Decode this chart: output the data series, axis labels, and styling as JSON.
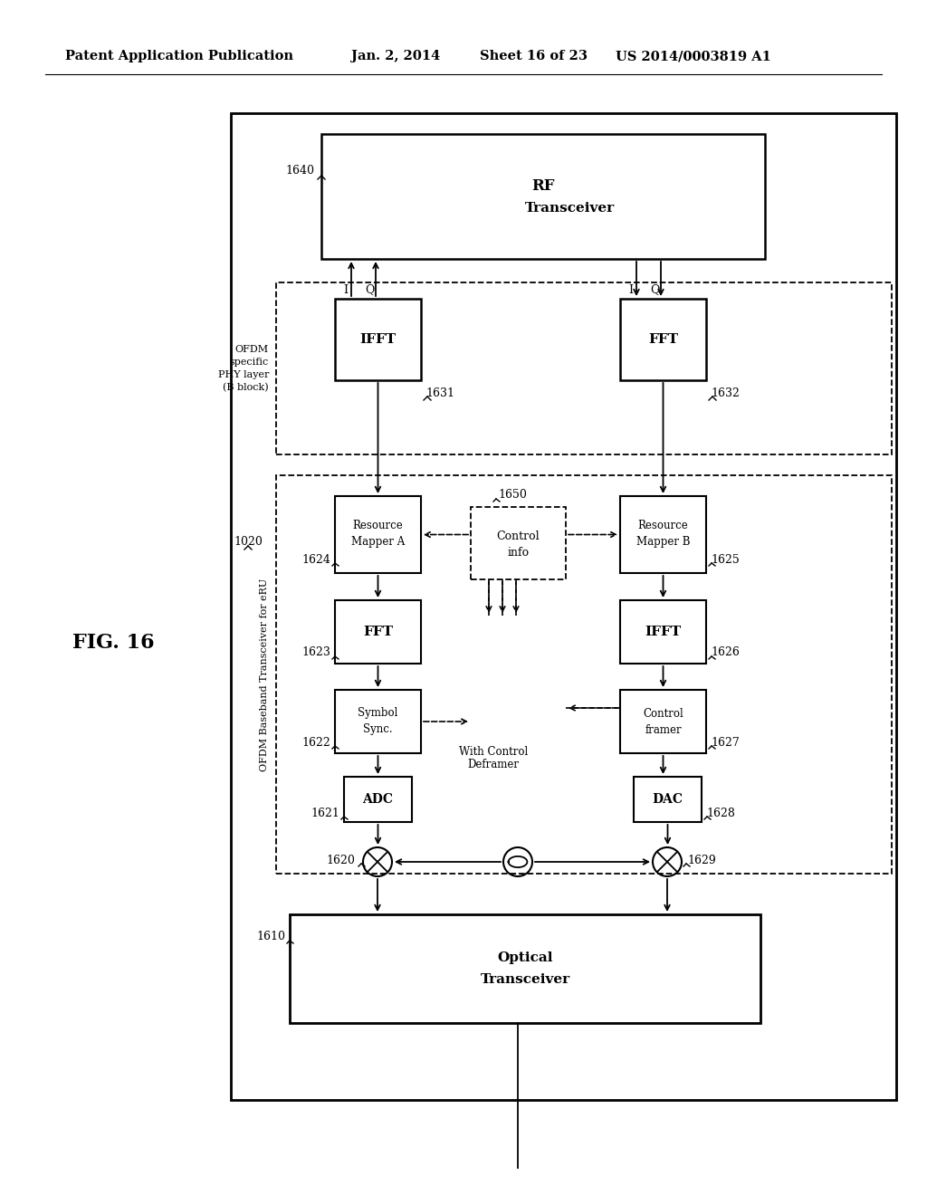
{
  "bg_color": "#ffffff",
  "header_text": "Patent Application Publication",
  "header_date": "Jan. 2, 2014",
  "header_sheet": "Sheet 16 of 23",
  "header_patent": "US 2014/0003819 A1"
}
